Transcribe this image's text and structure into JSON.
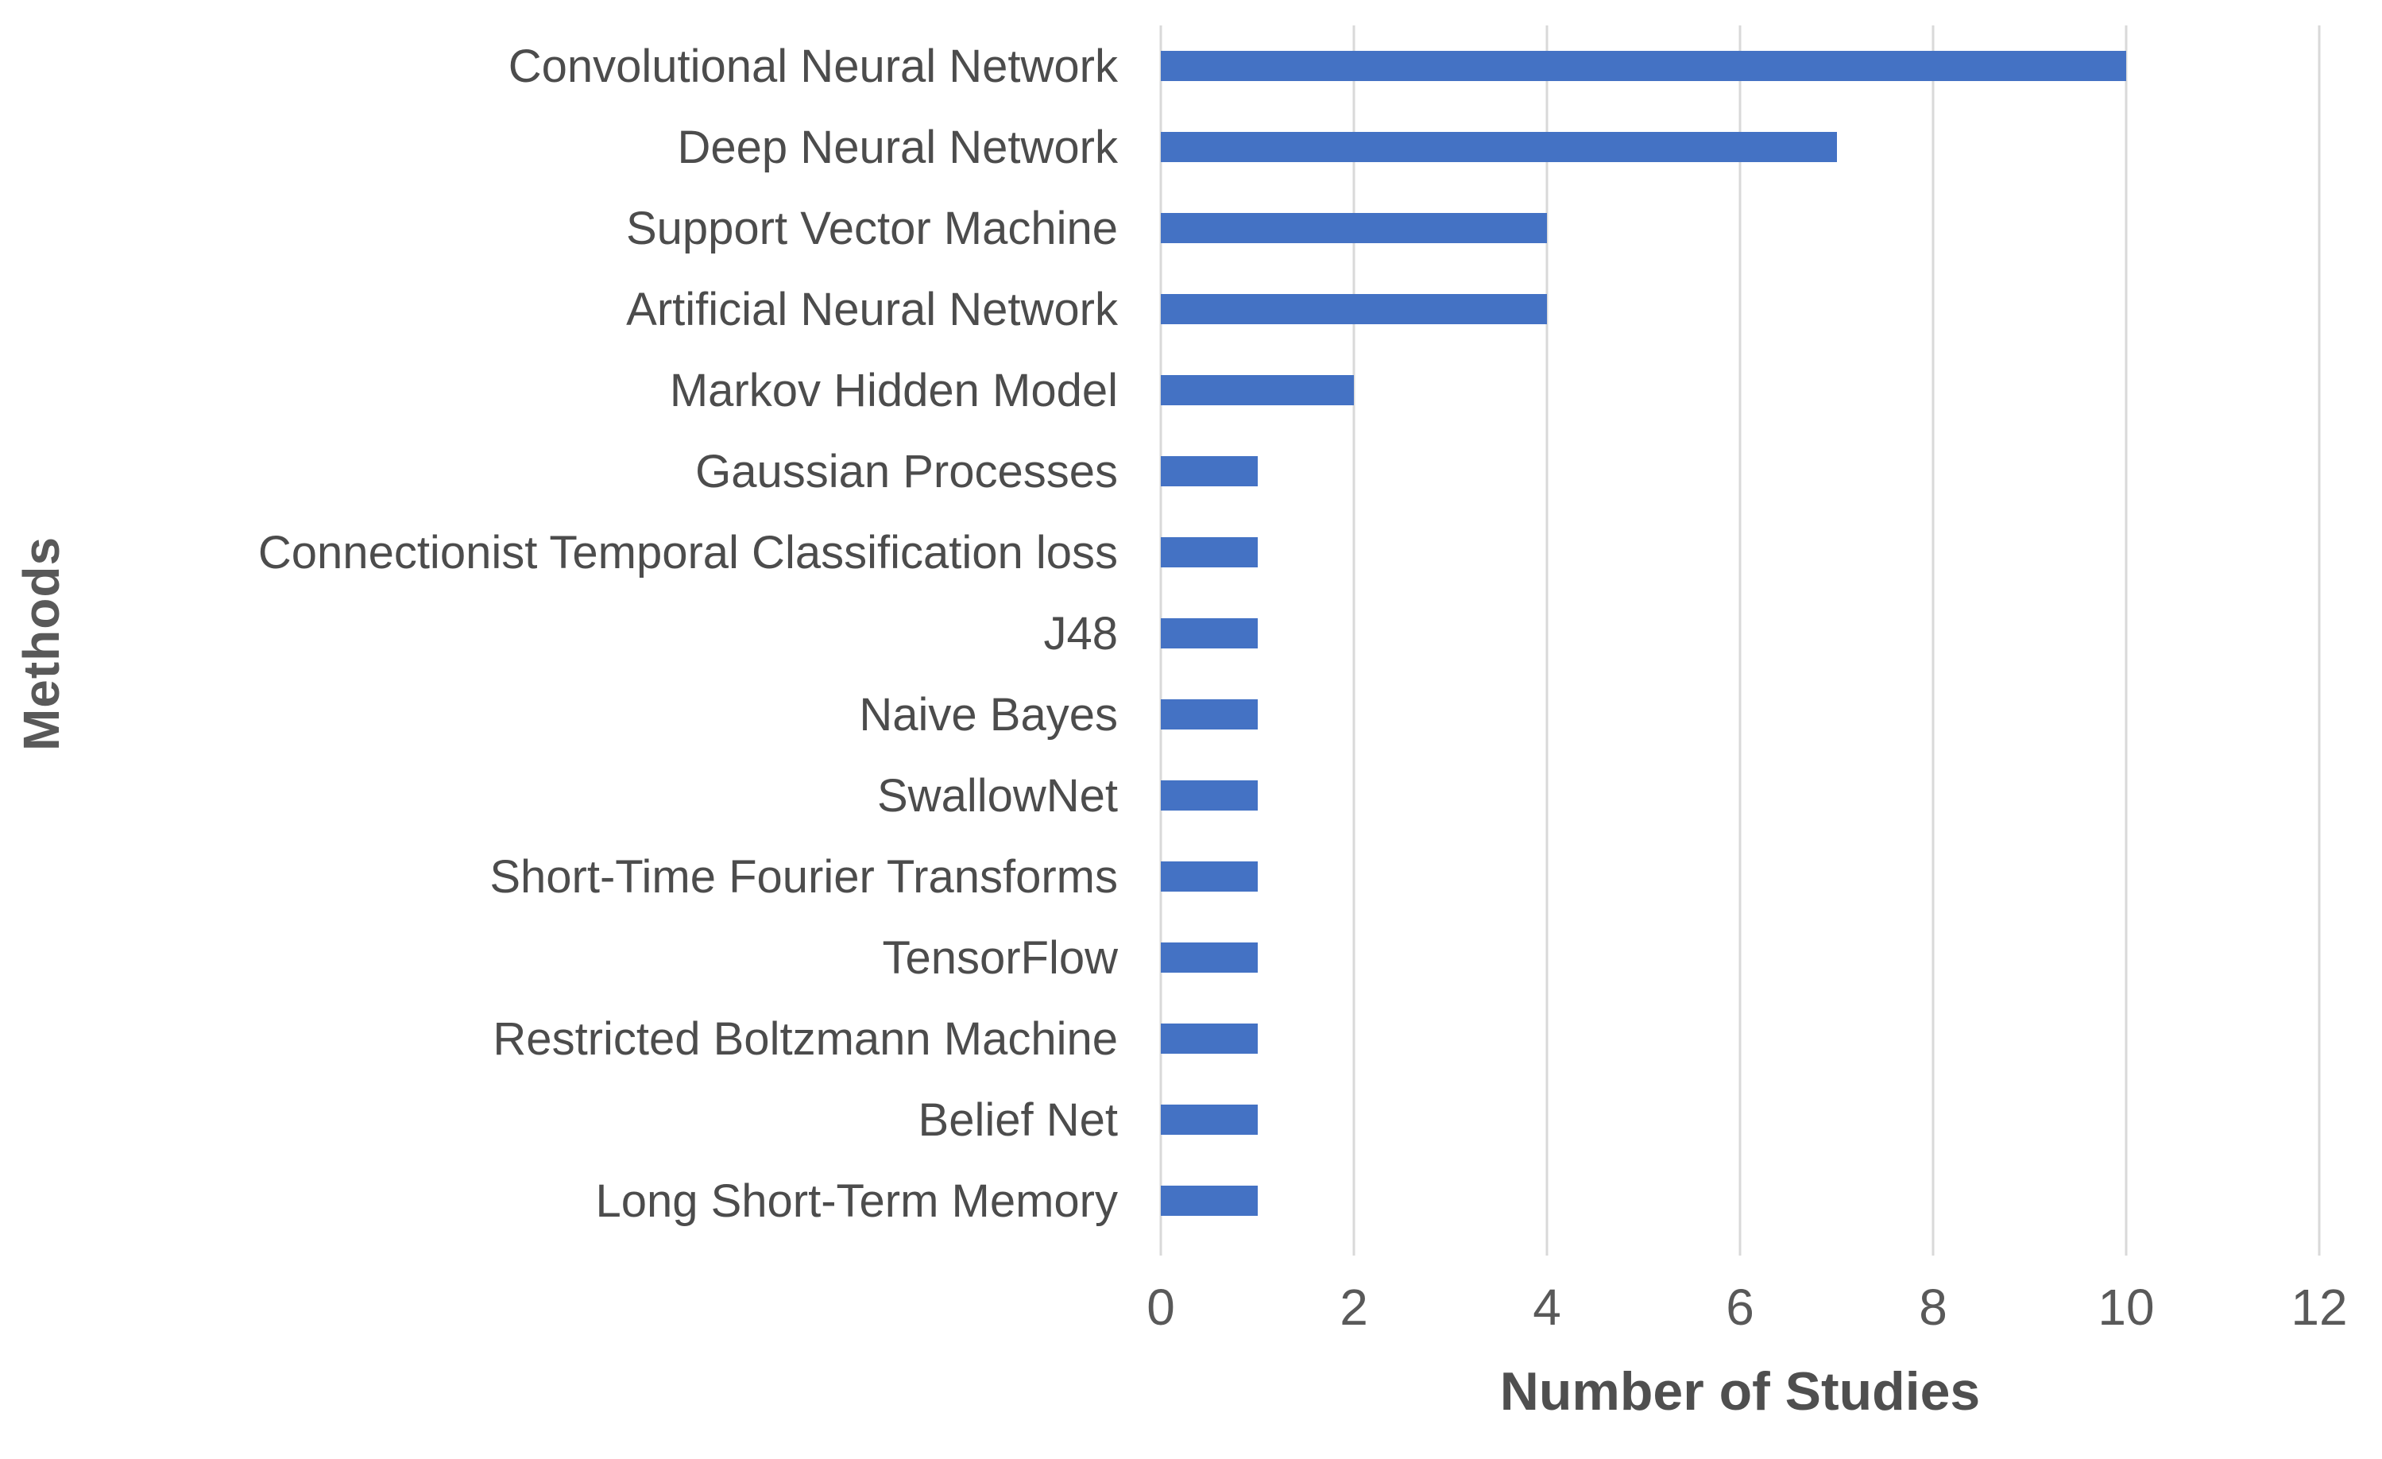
{
  "chart_data": {
    "type": "bar",
    "orientation": "horizontal",
    "title": "",
    "xlabel": "Number of Studies",
    "ylabel": "Methods",
    "categories": [
      "Convolutional Neural Network",
      "Deep Neural Network",
      "Support Vector Machine",
      "Artificial Neural Network",
      "Markov Hidden Model",
      "Gaussian Processes",
      "Connectionist Temporal Classification loss",
      "J48",
      "Naive Bayes",
      "SwallowNet",
      "Short-Time Fourier Transforms",
      "TensorFlow",
      "Restricted Boltzmann Machine",
      "Belief Net",
      "Long Short-Term Memory"
    ],
    "values": [
      10,
      7,
      4,
      4,
      2,
      1,
      1,
      1,
      1,
      1,
      1,
      1,
      1,
      1,
      1
    ],
    "xlim": [
      0,
      12
    ],
    "xticks": [
      0,
      2,
      4,
      6,
      8,
      10,
      12
    ],
    "grid": "vertical-only",
    "legend": "none",
    "colors": {
      "bar": "#4472C4",
      "gridline": "#D9D9D9",
      "text": "#595959"
    }
  }
}
